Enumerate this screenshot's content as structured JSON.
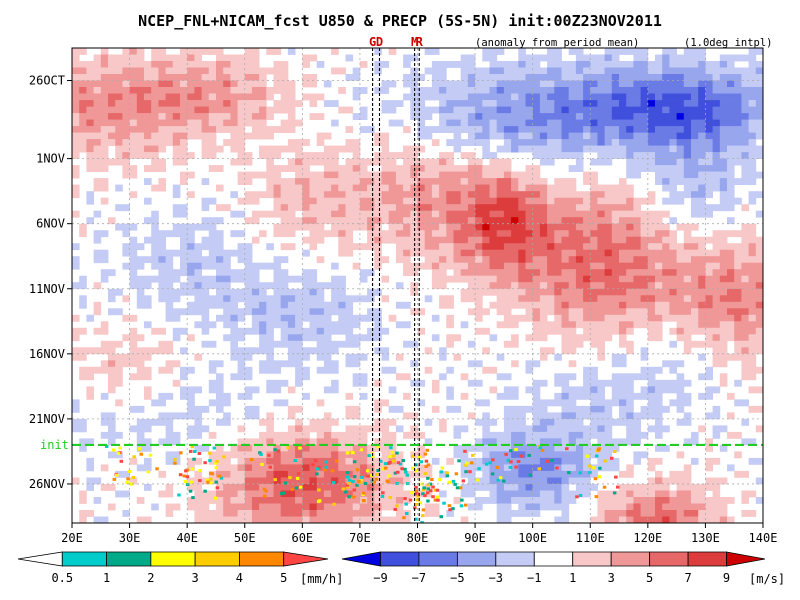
{
  "chart_data": {
    "type": "heatmap",
    "title": "NCEP_FNL+NICAM_fcst U850 & PRECP (5S-5N) init:00Z23NOV2011",
    "subtitle_left": "(anomaly from period mean)",
    "subtitle_right": "(1.0deg intpl)",
    "x_ticks": [
      "20E",
      "30E",
      "40E",
      "50E",
      "60E",
      "70E",
      "80E",
      "90E",
      "100E",
      "110E",
      "120E",
      "130E",
      "140E"
    ],
    "x_values": [
      20,
      30,
      40,
      50,
      60,
      70,
      80,
      90,
      100,
      110,
      120,
      130,
      140
    ],
    "xlim": [
      20,
      140
    ],
    "y_ticks": [
      "26OCT",
      "1NOV",
      "6NOV",
      "11NOV",
      "16NOV",
      "21NOV",
      "26NOV"
    ],
    "y_values": [
      0,
      6,
      11,
      16,
      21,
      26,
      31
    ],
    "ylim": [
      -2.5,
      34
    ],
    "init_label": "init",
    "init_day": 28,
    "markers": [
      {
        "label": "G",
        "lon": 72.2
      },
      {
        "label": "D",
        "lon": 73.4
      },
      {
        "label": "M",
        "lon": 79.5
      },
      {
        "label": "R",
        "lon": 80.3
      }
    ],
    "precip_colorbar": {
      "labels": [
        "0.5",
        "1",
        "2",
        "3",
        "4",
        "5"
      ],
      "unit": "[mm/h]",
      "colors": [
        "#ffffff",
        "#00cccc",
        "#00aa88",
        "#ffff00",
        "#ffcc00",
        "#ff8800",
        "#ff4444"
      ]
    },
    "u850_colorbar": {
      "labels": [
        "−9",
        "−7",
        "−5",
        "−3",
        "−1",
        "1",
        "3",
        "5",
        "7",
        "9"
      ],
      "unit": "[m/s]",
      "colors": [
        "#0000e0",
        "#4050dd",
        "#6a7be6",
        "#98a6ee",
        "#c4ccf5",
        "#ffffff",
        "#f8c8c8",
        "#f09898",
        "#e66868",
        "#dc3c3c",
        "#cc0000"
      ]
    }
  }
}
